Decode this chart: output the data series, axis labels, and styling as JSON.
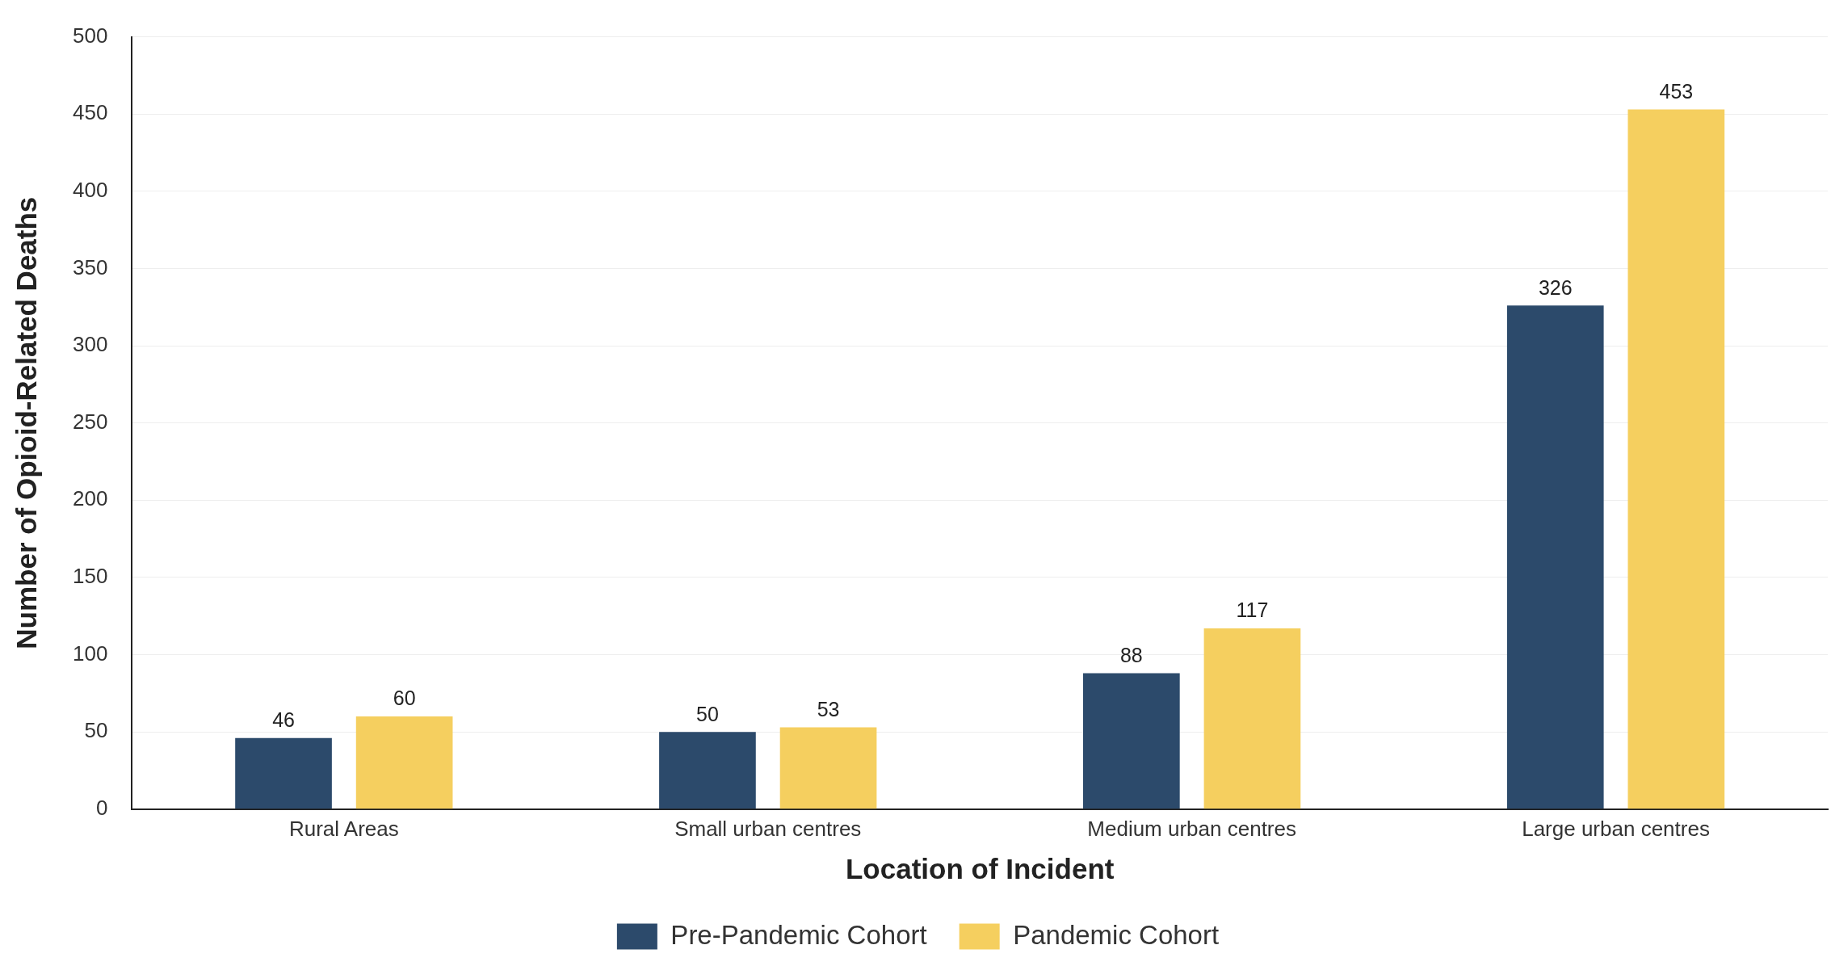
{
  "chart_data": {
    "type": "bar",
    "xlabel": "Location of Incident",
    "ylabel": "Number of Opioid-Related Deaths",
    "categories": [
      "Rural Areas",
      "Small urban centres",
      "Medium urban centres",
      "Large urban centres"
    ],
    "series": [
      {
        "name": "Pre-Pandemic Cohort",
        "color": "#2c4a6b",
        "values": [
          46,
          50,
          88,
          326
        ]
      },
      {
        "name": "Pandemic Cohort",
        "color": "#f5cf5f",
        "values": [
          60,
          53,
          117,
          453
        ]
      }
    ],
    "ylim": [
      0,
      500
    ],
    "yticks": [
      0,
      50,
      100,
      150,
      200,
      250,
      300,
      350,
      400,
      450,
      500
    ],
    "grid": "y",
    "legend": "bottom",
    "data_labels": true
  }
}
